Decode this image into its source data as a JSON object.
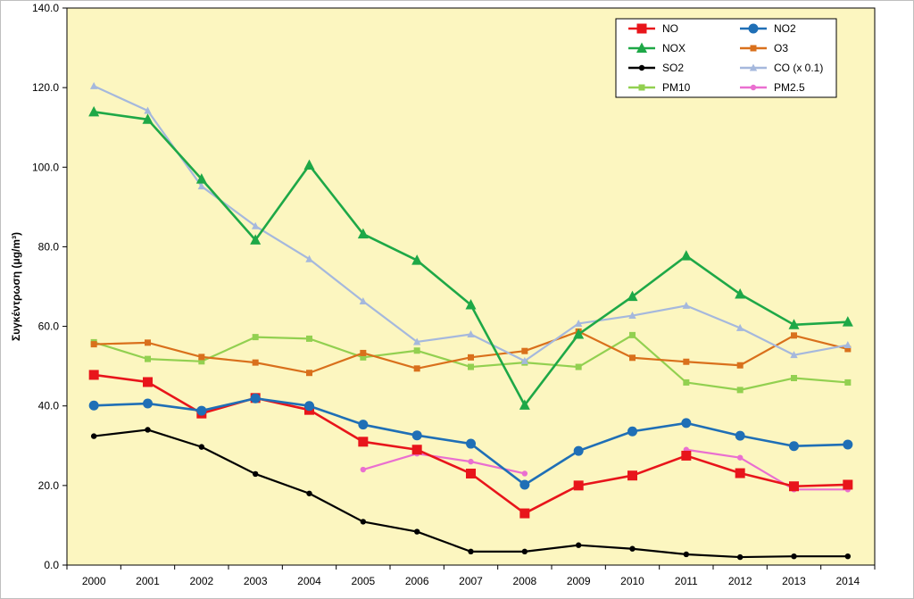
{
  "chart_data": {
    "type": "line",
    "title": "",
    "xlabel": "",
    "ylabel": "Συγκέντρωση (μg/m³)",
    "categories": [
      "2000",
      "2001",
      "2002",
      "2003",
      "2004",
      "2005",
      "2006",
      "2007",
      "2008",
      "2009",
      "2010",
      "2011",
      "2012",
      "2013",
      "2014"
    ],
    "ylim": [
      0,
      140
    ],
    "yticks": [
      "0.0",
      "20.0",
      "40.0",
      "60.0",
      "80.0",
      "100.0",
      "120.0",
      "140.0"
    ],
    "ytick_values": [
      0,
      20,
      40,
      60,
      80,
      100,
      120,
      140
    ],
    "grid": false,
    "legend_position": "top-right",
    "plot_background": "#fcf6c0",
    "series": [
      {
        "name": "NO",
        "color": "#e8151b",
        "marker": "square",
        "values": [
          47.8,
          46.0,
          38.1,
          42.0,
          39.0,
          31.0,
          29.0,
          23.0,
          13.0,
          20.0,
          22.5,
          27.5,
          23.1,
          19.8,
          20.2
        ]
      },
      {
        "name": "NO2",
        "color": "#1f6fb6",
        "marker": "circle",
        "values": [
          40.1,
          40.6,
          38.8,
          41.9,
          40.0,
          35.3,
          32.6,
          30.5,
          20.2,
          28.7,
          33.6,
          35.7,
          32.5,
          29.9,
          30.3
        ]
      },
      {
        "name": "NOX",
        "color": "#1ea847",
        "marker": "triangle",
        "values": [
          113.9,
          112.0,
          97.0,
          81.7,
          100.5,
          83.2,
          76.6,
          65.4,
          40.2,
          58.0,
          67.5,
          77.7,
          68.1,
          60.4,
          61.1
        ]
      },
      {
        "name": "O3",
        "color": "#d9701c",
        "marker": "small-square",
        "values": [
          55.5,
          55.9,
          52.3,
          50.9,
          48.3,
          53.3,
          49.4,
          52.2,
          53.8,
          58.7,
          52.1,
          51.1,
          50.2,
          57.7,
          54.3
        ]
      },
      {
        "name": "SO2",
        "color": "#000000",
        "marker": "dot",
        "values": [
          32.4,
          34.0,
          29.7,
          22.9,
          18.0,
          10.9,
          8.4,
          3.4,
          3.4,
          5.0,
          4.1,
          2.7,
          2.0,
          2.2,
          2.2
        ]
      },
      {
        "name": "CO (x 0.1)",
        "color": "#a5b8dd",
        "marker": "triangle-small",
        "values": [
          120.4,
          114.2,
          95.2,
          85.2,
          76.9,
          66.3,
          56.1,
          58.0,
          51.3,
          60.7,
          62.7,
          65.2,
          59.6,
          52.8,
          55.3
        ]
      },
      {
        "name": "PM10",
        "color": "#92d050",
        "marker": "small-square",
        "values": [
          56.0,
          51.8,
          51.2,
          57.3,
          56.9,
          52.2,
          53.9,
          49.8,
          50.9,
          49.8,
          57.8,
          45.9,
          44.0,
          47.0,
          45.9
        ]
      },
      {
        "name": "PM2.5",
        "color": "#ea6fd0",
        "marker": "dot",
        "values": [
          null,
          null,
          null,
          null,
          null,
          24.0,
          28.0,
          26.0,
          23.0,
          null,
          null,
          29.0,
          27.0,
          19.0,
          19.0
        ]
      }
    ]
  }
}
